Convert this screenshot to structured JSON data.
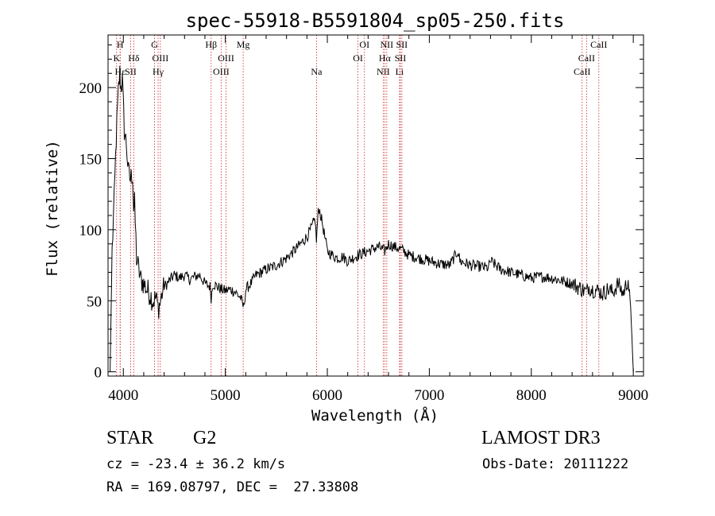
{
  "chart_data": {
    "type": "line",
    "title": "spec-55918-B5591804_sp05-250.fits",
    "xlabel": "Wavelength (Å)",
    "ylabel": "Flux (relative)",
    "xlim": [
      3850,
      9100
    ],
    "ylim": [
      -3,
      237
    ],
    "xticks": [
      4000,
      5000,
      6000,
      7000,
      8000,
      9000
    ],
    "yticks": [
      0,
      50,
      100,
      150,
      200
    ],
    "series": [
      {
        "name": "flux",
        "x": [
          3870,
          3890,
          3910,
          3930,
          3950,
          3965,
          3975,
          3990,
          4010,
          4030,
          4050,
          4070,
          4090,
          4101,
          4110,
          4130,
          4150,
          4170,
          4200,
          4230,
          4260,
          4290,
          4320,
          4340,
          4360,
          4380,
          4400,
          4430,
          4460,
          4500,
          4550,
          4600,
          4650,
          4700,
          4750,
          4800,
          4850,
          4861,
          4880,
          4920,
          4960,
          5000,
          5050,
          5100,
          5150,
          5180,
          5200,
          5250,
          5300,
          5400,
          5500,
          5600,
          5700,
          5800,
          5850,
          5880,
          5893,
          5910,
          5920,
          5950,
          6000,
          6050,
          6100,
          6150,
          6200,
          6300,
          6400,
          6500,
          6563,
          6600,
          6650,
          6700,
          6750,
          6800,
          6900,
          7000,
          7100,
          7200,
          7280,
          7300,
          7400,
          7500,
          7580,
          7600,
          7700,
          7800,
          7900,
          8000,
          8100,
          8200,
          8300,
          8400,
          8450,
          8500,
          8542,
          8560,
          8600,
          8662,
          8700,
          8750,
          8800,
          8850,
          8900,
          8950,
          8980,
          9000
        ],
        "y": [
          0,
          85,
          120,
          165,
          195,
          210,
          200,
          205,
          170,
          160,
          140,
          135,
          140,
          115,
          118,
          80,
          72,
          65,
          62,
          58,
          55,
          50,
          52,
          45,
          48,
          55,
          60,
          62,
          65,
          68,
          66,
          68,
          65,
          67,
          68,
          62,
          60,
          52,
          62,
          60,
          58,
          57,
          58,
          56,
          52,
          45,
          58,
          62,
          68,
          72,
          75,
          80,
          87,
          95,
          102,
          108,
          92,
          112,
          115,
          105,
          85,
          82,
          80,
          81,
          78,
          82,
          85,
          88,
          85,
          90,
          88,
          87,
          85,
          82,
          80,
          78,
          76,
          75,
          85,
          78,
          75,
          74,
          73,
          78,
          72,
          70,
          68,
          66,
          67,
          66,
          64,
          62,
          60,
          58,
          56,
          60,
          58,
          57,
          55,
          58,
          56,
          62,
          55,
          65,
          35,
          0
        ]
      }
    ],
    "lines": [
      {
        "name": "K",
        "wl": 3934,
        "row": 2
      },
      {
        "name": "H",
        "wl": 3968,
        "row": 1
      },
      {
        "name": "Hε",
        "wl": 3970,
        "row": 3
      },
      {
        "name": "SII",
        "wl": 4072,
        "row": 3
      },
      {
        "name": "Hδ",
        "wl": 4102,
        "row": 2
      },
      {
        "name": "G",
        "wl": 4305,
        "row": 1
      },
      {
        "name": "Hγ",
        "wl": 4341,
        "row": 3
      },
      {
        "name": "OIII",
        "wl": 4363,
        "row": 2
      },
      {
        "name": "Hβ",
        "wl": 4861,
        "row": 1
      },
      {
        "name": "OIII",
        "wl": 4959,
        "row": 3
      },
      {
        "name": "OIII",
        "wl": 5007,
        "row": 2
      },
      {
        "name": "Mg",
        "wl": 5175,
        "row": 1
      },
      {
        "name": "Na",
        "wl": 5894,
        "row": 3
      },
      {
        "name": "OI",
        "wl": 6300,
        "row": 2
      },
      {
        "name": "OI",
        "wl": 6364,
        "row": 1
      },
      {
        "name": "NII",
        "wl": 6548,
        "row": 3
      },
      {
        "name": "Hα",
        "wl": 6563,
        "row": 2
      },
      {
        "name": "NII",
        "wl": 6583,
        "row": 1
      },
      {
        "name": "Li",
        "wl": 6708,
        "row": 3
      },
      {
        "name": "SII",
        "wl": 6716,
        "row": 2
      },
      {
        "name": "SII",
        "wl": 6731,
        "row": 1
      },
      {
        "name": "CaII",
        "wl": 8498,
        "row": 3
      },
      {
        "name": "CaII",
        "wl": 8542,
        "row": 2
      },
      {
        "name": "CaII",
        "wl": 8662,
        "row": 1
      }
    ]
  },
  "info": {
    "class": "STAR",
    "subclass": "G2",
    "survey": "LAMOST DR3",
    "cz": "cz = -23.4 ± 36.2 km/s",
    "obs_date": "Obs-Date: 20111222",
    "coords": "RA = 169.08797, DEC =  27.33808"
  },
  "colors": {
    "line_marker": "#cc2222",
    "spectrum": "#000000"
  }
}
